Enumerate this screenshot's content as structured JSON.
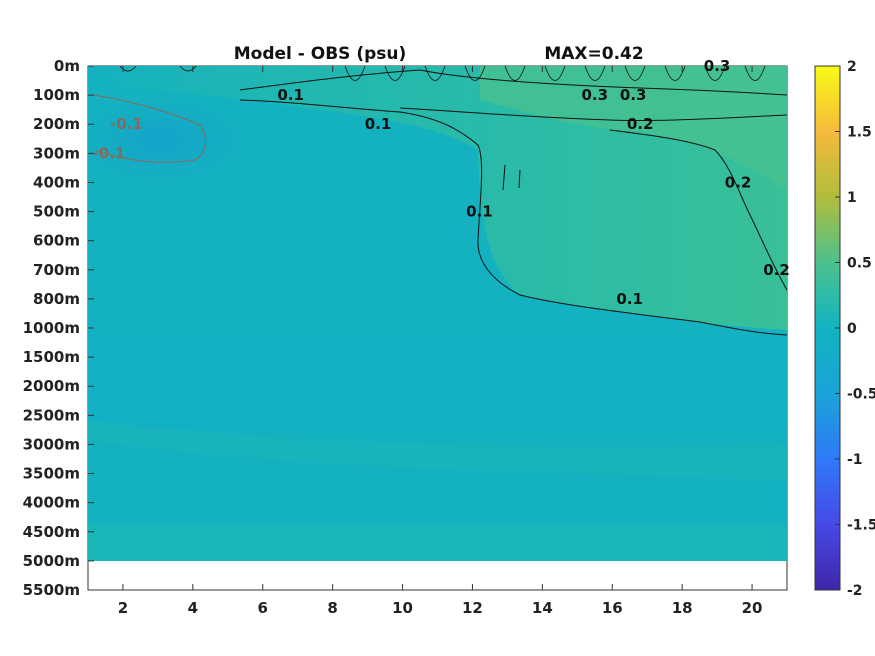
{
  "chart_data": {
    "type": "heatmap",
    "title": "Model - OBS (psu)",
    "max_label": "MAX=0.42",
    "colormap": "parula",
    "clim": [
      -2,
      2
    ],
    "x": {
      "range": [
        1,
        21
      ],
      "ticks": [
        2,
        4,
        6,
        8,
        10,
        12,
        14,
        16,
        18,
        20
      ],
      "tick_labels": [
        "2",
        "4",
        "6",
        "8",
        "10",
        "12",
        "14",
        "16",
        "18",
        "20"
      ]
    },
    "y": {
      "levels": [
        "0m",
        "100m",
        "200m",
        "300m",
        "400m",
        "500m",
        "600m",
        "700m",
        "800m",
        "1000m",
        "1500m",
        "2000m",
        "2500m",
        "3000m",
        "3500m",
        "4000m",
        "4500m",
        "5000m",
        "5500m"
      ],
      "reversed": true,
      "data_bottom_level": "5000m"
    },
    "colorbar": {
      "ticks": [
        2,
        1.5,
        1,
        0.5,
        0,
        -0.5,
        -1,
        -1.5,
        -2
      ],
      "tick_labels": [
        "2",
        "1.5",
        "1",
        "0.5",
        "0",
        "-0.5",
        "-1",
        "-1.5",
        "-2"
      ]
    },
    "contour_labels": [
      {
        "text": "0.1",
        "x": 6.8,
        "depth": "100m"
      },
      {
        "text": "0.1",
        "x": 9.3,
        "depth": "200m"
      },
      {
        "text": "0.1",
        "x": 12.2,
        "depth": "500m"
      },
      {
        "text": "0.1",
        "x": 16.5,
        "depth": "800m"
      },
      {
        "text": "0.3",
        "x": 15.5,
        "depth": "100m"
      },
      {
        "text": "0.3",
        "x": 16.6,
        "depth": "100m"
      },
      {
        "text": "0.3",
        "x": 19.0,
        "depth": "0m"
      },
      {
        "text": "0.2",
        "x": 16.8,
        "depth": "200m"
      },
      {
        "text": "0.2",
        "x": 19.6,
        "depth": "400m"
      },
      {
        "text": "0.2",
        "x": 20.7,
        "depth": "700m"
      },
      {
        "text": "-0.1",
        "x": 2.1,
        "depth": "200m"
      },
      {
        "text": "-0.1",
        "x": 1.6,
        "depth": "300m"
      }
    ]
  }
}
